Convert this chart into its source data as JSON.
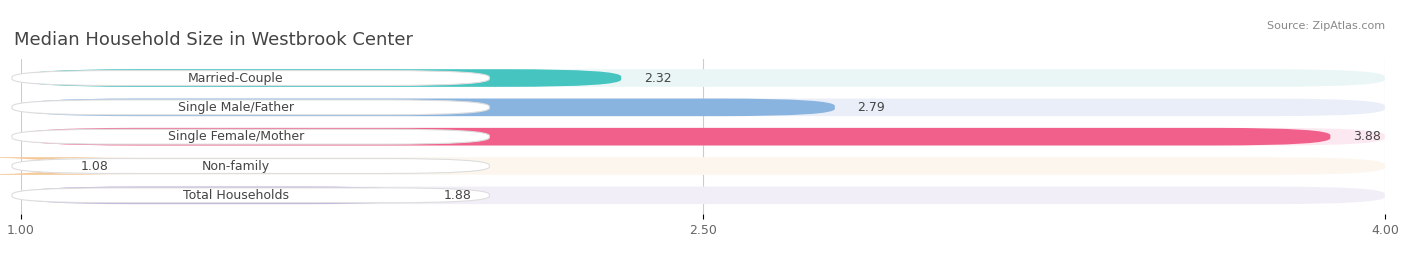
{
  "title": "Median Household Size in Westbrook Center",
  "source": "Source: ZipAtlas.com",
  "categories": [
    "Married-Couple",
    "Single Male/Father",
    "Single Female/Mother",
    "Non-family",
    "Total Households"
  ],
  "values": [
    2.32,
    2.79,
    3.88,
    1.08,
    1.88
  ],
  "bar_colors": [
    "#45c4c0",
    "#8ab4e0",
    "#f0608a",
    "#f5c898",
    "#b8a8d8"
  ],
  "bar_bg_colors": [
    "#eaf6f6",
    "#eaeef8",
    "#fce8f0",
    "#fdf6ee",
    "#f2eef8"
  ],
  "xlim": [
    1.0,
    4.0
  ],
  "xticks": [
    1.0,
    2.5,
    4.0
  ],
  "xticklabels": [
    "1.00",
    "2.50",
    "4.00"
  ],
  "background_color": "#ffffff",
  "title_fontsize": 13,
  "label_fontsize": 9,
  "value_fontsize": 9
}
